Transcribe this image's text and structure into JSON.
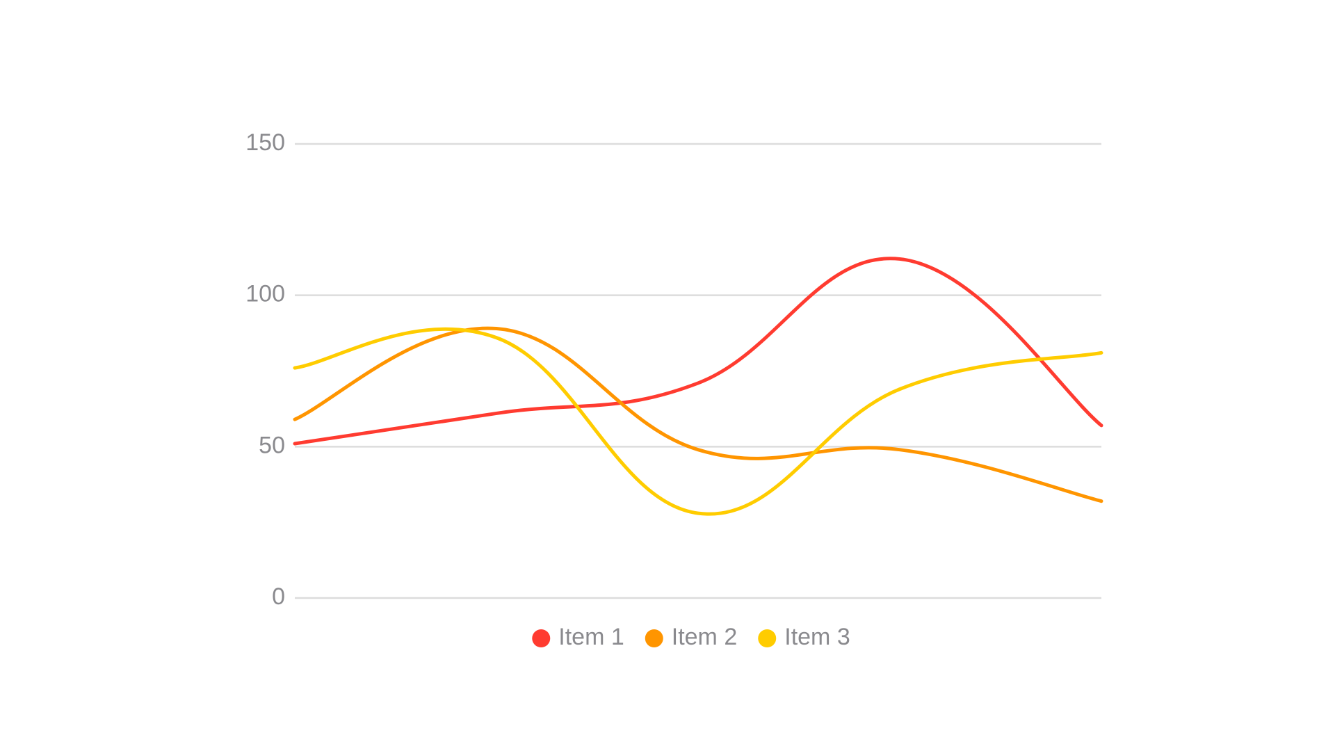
{
  "chart_data": {
    "type": "line",
    "categories": [
      null,
      null,
      null,
      null,
      null
    ],
    "series": [
      {
        "name": "Item 1",
        "color": "#ff3b30",
        "values": [
          51,
          61,
          71,
          112,
          57
        ]
      },
      {
        "name": "Item 2",
        "color": "#ff9500",
        "values": [
          59,
          89,
          49,
          49,
          32
        ]
      },
      {
        "name": "Item 3",
        "color": "#ffcc00",
        "values": [
          76,
          86,
          28,
          69,
          81
        ]
      }
    ],
    "ylim": [
      0,
      150
    ],
    "yticks": [
      0,
      50,
      100,
      150
    ],
    "grid": true,
    "legend": "bottom"
  }
}
